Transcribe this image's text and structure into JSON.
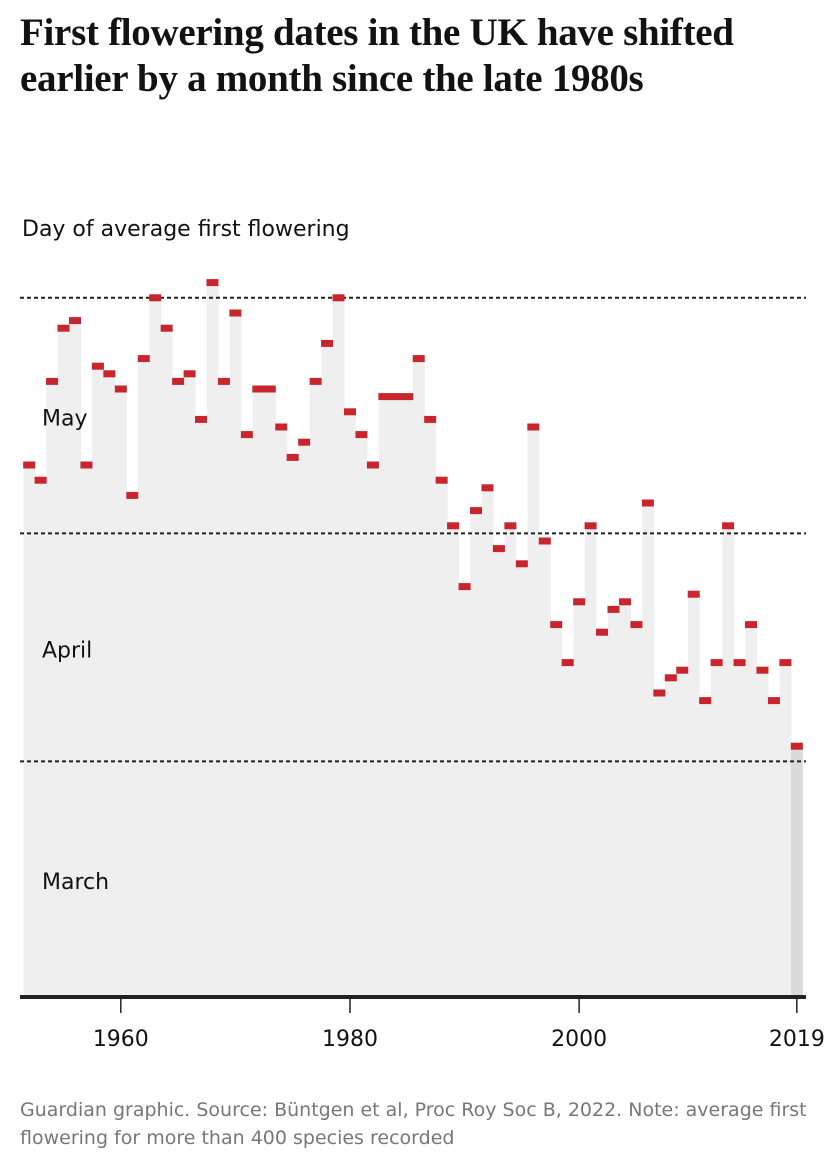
{
  "chart_data": {
    "type": "column-dot",
    "title": "First flowering dates in the UK have shifted earlier by a month since the late 1980s",
    "ylabel": "Day of average first flowering",
    "note": "Guardian graphic. Source: Büntgen et al, Proc Roy Soc B, 2022. Note: average first flowering for more than 400 species recorded",
    "x": [
      1952,
      1953,
      1954,
      1955,
      1956,
      1957,
      1958,
      1959,
      1960,
      1961,
      1962,
      1963,
      1964,
      1965,
      1966,
      1967,
      1968,
      1969,
      1970,
      1971,
      1972,
      1973,
      1974,
      1975,
      1976,
      1977,
      1978,
      1979,
      1980,
      1981,
      1982,
      1983,
      1984,
      1985,
      1986,
      1987,
      1988,
      1989,
      1990,
      1991,
      1992,
      1993,
      1994,
      1995,
      1996,
      1997,
      1998,
      1999,
      2000,
      2001,
      2002,
      2003,
      2004,
      2005,
      2006,
      2007,
      2008,
      2009,
      2010,
      2011,
      2012,
      2013,
      2014,
      2015,
      2016,
      2017,
      2018,
      2019
    ],
    "values": [
      130,
      128,
      141,
      148,
      149,
      130,
      143,
      142,
      140,
      126,
      144,
      152,
      148,
      141,
      142,
      136,
      154,
      141,
      150,
      134,
      140,
      140,
      135,
      131,
      133,
      141,
      146,
      152,
      137,
      134,
      130,
      139,
      139,
      139,
      144,
      136,
      128,
      122,
      114,
      124,
      127,
      119,
      122,
      117,
      135,
      120,
      109,
      104,
      112,
      122,
      108,
      111,
      112,
      109,
      125,
      100,
      102,
      103,
      113,
      99,
      104,
      122,
      104,
      109,
      103,
      99,
      104,
      93
    ],
    "color": "#c8252c",
    "fill": "#efefef",
    "highlight_fill": "#dadada",
    "xlim": [
      1951.2,
      2019.8
    ],
    "xticks": [
      1960,
      1980,
      2000,
      2019
    ],
    "ylim": [
      60,
      155
    ],
    "yticks": [
      91,
      121,
      152
    ],
    "bands": [
      {
        "label": "May",
        "from": 121,
        "to": 152
      },
      {
        "label": "April",
        "from": 91,
        "to": 121
      },
      {
        "label": "March",
        "from": 60,
        "to": 91
      }
    ],
    "grid": true
  }
}
